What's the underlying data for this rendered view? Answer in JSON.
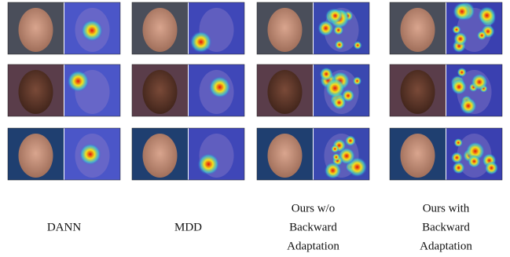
{
  "columns": [
    {
      "caption": [
        "DANN"
      ]
    },
    {
      "caption": [
        "MDD"
      ]
    },
    {
      "caption": [
        "Ours w/o",
        "Backward",
        "Adaptation"
      ]
    },
    {
      "caption": [
        "Ours with",
        "Backward",
        "Adaptation"
      ]
    }
  ]
}
